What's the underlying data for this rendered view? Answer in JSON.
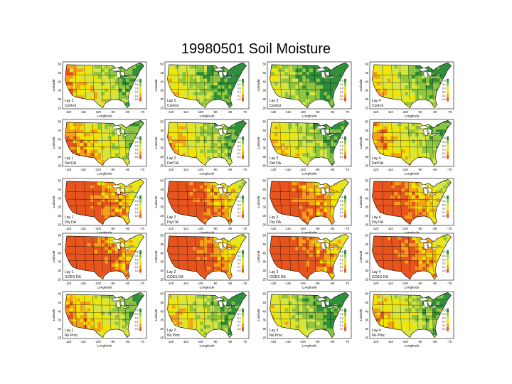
{
  "title": "19980501 Soil Moisture",
  "axes": {
    "xlabel": "Longitude",
    "ylabel": "Latitude",
    "xticks": [
      "-120",
      "-110",
      "-100",
      "-90",
      "-80",
      "-70"
    ],
    "yticks": [
      "50",
      "45",
      "40",
      "35",
      "30",
      "25"
    ],
    "colorbar_ticks": [
      "0.5",
      "0.4",
      "0.3",
      "0.2",
      "0.1",
      "0.0"
    ]
  },
  "colors": {
    "wet": "#2f8f3a",
    "mid_green": "#8dc63f",
    "yellow_green": "#d6e544",
    "yellow": "#f2e600",
    "orange": "#f6a01a",
    "dry": "#e8541e",
    "water": "#ffffff"
  },
  "chart_data": {
    "type": "heatmap",
    "title": "19980501 Soil Moisture",
    "xlabel": "Longitude",
    "ylabel": "Latitude",
    "xlim": [
      -125,
      -67
    ],
    "ylim": [
      25,
      50
    ],
    "colorbar_range": [
      0.0,
      0.5
    ],
    "rows": [
      {
        "experiment": "Control",
        "layer_labels": [
          "Lay 1",
          "Lay 2",
          "Lay 3",
          "Lay 4"
        ],
        "mean_wetness": [
          0.24,
          0.3,
          0.33,
          0.27
        ]
      },
      {
        "experiment": "Def DA",
        "layer_labels": [
          "Lay 1",
          "Lay 2",
          "Lay 3",
          "Lay 4"
        ],
        "mean_wetness": [
          0.2,
          0.25,
          0.26,
          0.22
        ]
      },
      {
        "experiment": "Dry DA",
        "layer_labels": [
          "Lay 1",
          "Lay 2",
          "Lay 3",
          "Lay 4"
        ],
        "mean_wetness": [
          0.08,
          0.08,
          0.08,
          0.1
        ]
      },
      {
        "experiment": "GOES DA",
        "layer_labels": [
          "Lay 1",
          "Lay 2",
          "Lay 3",
          "Lay 4"
        ],
        "mean_wetness": [
          0.06,
          0.06,
          0.06,
          0.07
        ]
      },
      {
        "experiment": "No Proc",
        "layer_labels": [
          "Lay 1",
          "Lay 2",
          "Lay 3",
          "Lay 4"
        ],
        "mean_wetness": [
          0.22,
          0.26,
          0.3,
          0.25
        ]
      }
    ]
  }
}
